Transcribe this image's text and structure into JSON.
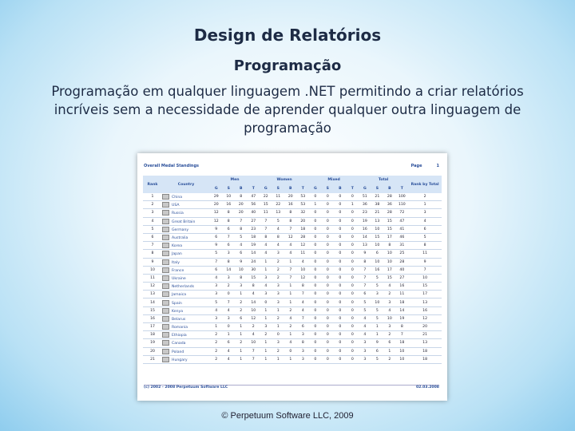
{
  "slide": {
    "title": "Design de Relatórios",
    "subtitle": "Programação",
    "body": "Programação em qualquer linguagem .NET  permitindo a criar relatórios incríveis sem a necessidade de aprender qualquer outra linguagem de programação",
    "footer": "© Perpetuum Software LLC, 2009"
  },
  "report": {
    "title": "Overall Medal Standings",
    "page_label": "Page",
    "page_number": 1,
    "headers": {
      "rank": "Rank",
      "country": "Country",
      "groups": [
        "Men",
        "Women",
        "Mixed",
        "Total"
      ],
      "sub": [
        "G",
        "S",
        "B",
        "T"
      ],
      "rank_by_total": "Rank by Total"
    },
    "rows": [
      {
        "rank": 1,
        "country": "China",
        "values": [
          29,
          10,
          8,
          47,
          22,
          11,
          20,
          53,
          0,
          0,
          0,
          0,
          51,
          21,
          28,
          100
        ],
        "rank_by_total": 2
      },
      {
        "rank": 2,
        "country": "USA",
        "values": [
          20,
          16,
          20,
          56,
          15,
          22,
          16,
          53,
          1,
          0,
          0,
          1,
          36,
          38,
          36,
          110
        ],
        "rank_by_total": 1
      },
      {
        "rank": 3,
        "country": "Russia",
        "values": [
          12,
          8,
          20,
          40,
          11,
          13,
          8,
          32,
          0,
          0,
          0,
          0,
          23,
          21,
          28,
          72
        ],
        "rank_by_total": 3
      },
      {
        "rank": 4,
        "country": "Great Britain",
        "values": [
          12,
          8,
          7,
          27,
          7,
          5,
          8,
          20,
          0,
          0,
          0,
          0,
          19,
          13,
          15,
          47
        ],
        "rank_by_total": 4
      },
      {
        "rank": 5,
        "country": "Germany",
        "values": [
          9,
          6,
          8,
          23,
          7,
          4,
          7,
          18,
          0,
          0,
          0,
          0,
          16,
          10,
          15,
          41
        ],
        "rank_by_total": 6
      },
      {
        "rank": 6,
        "country": "Australia",
        "values": [
          6,
          7,
          5,
          18,
          8,
          8,
          12,
          28,
          0,
          0,
          0,
          0,
          14,
          15,
          17,
          46
        ],
        "rank_by_total": 5
      },
      {
        "rank": 7,
        "country": "Korea",
        "values": [
          9,
          6,
          4,
          19,
          4,
          4,
          4,
          12,
          0,
          0,
          0,
          0,
          13,
          10,
          8,
          31
        ],
        "rank_by_total": 8
      },
      {
        "rank": 8,
        "country": "Japan",
        "values": [
          5,
          3,
          6,
          14,
          4,
          3,
          4,
          11,
          0,
          0,
          0,
          0,
          9,
          6,
          10,
          25
        ],
        "rank_by_total": 11
      },
      {
        "rank": 9,
        "country": "Italy",
        "values": [
          7,
          8,
          9,
          24,
          1,
          2,
          1,
          4,
          0,
          0,
          0,
          0,
          8,
          10,
          10,
          28
        ],
        "rank_by_total": 9
      },
      {
        "rank": 10,
        "country": "France",
        "values": [
          6,
          14,
          10,
          30,
          1,
          2,
          7,
          10,
          0,
          0,
          0,
          0,
          7,
          16,
          17,
          40
        ],
        "rank_by_total": 7
      },
      {
        "rank": 11,
        "country": "Ukraine",
        "values": [
          4,
          3,
          8,
          15,
          3,
          2,
          7,
          12,
          0,
          0,
          0,
          0,
          7,
          5,
          15,
          27
        ],
        "rank_by_total": 10
      },
      {
        "rank": 12,
        "country": "Netherlands",
        "values": [
          3,
          2,
          3,
          8,
          4,
          3,
          1,
          8,
          0,
          0,
          0,
          0,
          7,
          5,
          4,
          16
        ],
        "rank_by_total": 15
      },
      {
        "rank": 13,
        "country": "Jamaica",
        "values": [
          3,
          0,
          1,
          4,
          3,
          3,
          1,
          7,
          0,
          0,
          0,
          0,
          6,
          3,
          2,
          11
        ],
        "rank_by_total": 17
      },
      {
        "rank": 14,
        "country": "Spain",
        "values": [
          5,
          7,
          2,
          14,
          0,
          3,
          1,
          4,
          0,
          0,
          0,
          0,
          5,
          10,
          3,
          18
        ],
        "rank_by_total": 13
      },
      {
        "rank": 15,
        "country": "Kenya",
        "values": [
          4,
          4,
          2,
          10,
          1,
          1,
          2,
          4,
          0,
          0,
          0,
          0,
          5,
          5,
          4,
          14
        ],
        "rank_by_total": 16
      },
      {
        "rank": 16,
        "country": "Belarus",
        "values": [
          3,
          3,
          6,
          12,
          1,
          2,
          4,
          7,
          0,
          0,
          0,
          0,
          4,
          5,
          10,
          19
        ],
        "rank_by_total": 12
      },
      {
        "rank": 17,
        "country": "Romania",
        "values": [
          1,
          0,
          1,
          2,
          3,
          1,
          2,
          6,
          0,
          0,
          0,
          0,
          4,
          1,
          3,
          8
        ],
        "rank_by_total": 20
      },
      {
        "rank": 18,
        "country": "Ethiopia",
        "values": [
          2,
          1,
          1,
          4,
          2,
          0,
          1,
          3,
          0,
          0,
          0,
          0,
          4,
          1,
          2,
          7
        ],
        "rank_by_total": 21
      },
      {
        "rank": 19,
        "country": "Canada",
        "values": [
          2,
          6,
          2,
          10,
          1,
          3,
          4,
          8,
          0,
          0,
          0,
          0,
          3,
          9,
          6,
          18
        ],
        "rank_by_total": 13
      },
      {
        "rank": 20,
        "country": "Poland",
        "values": [
          2,
          4,
          1,
          7,
          1,
          2,
          0,
          3,
          0,
          0,
          0,
          0,
          3,
          6,
          1,
          10
        ],
        "rank_by_total": 18
      },
      {
        "rank": 21,
        "country": "Hungary",
        "values": [
          2,
          4,
          1,
          7,
          1,
          1,
          1,
          3,
          0,
          0,
          0,
          0,
          3,
          5,
          2,
          10
        ],
        "rank_by_total": 18
      }
    ],
    "footer_left": "(c) 2002 - 2008 Perpetuum Software LLC",
    "footer_right": "02.03.2008"
  }
}
